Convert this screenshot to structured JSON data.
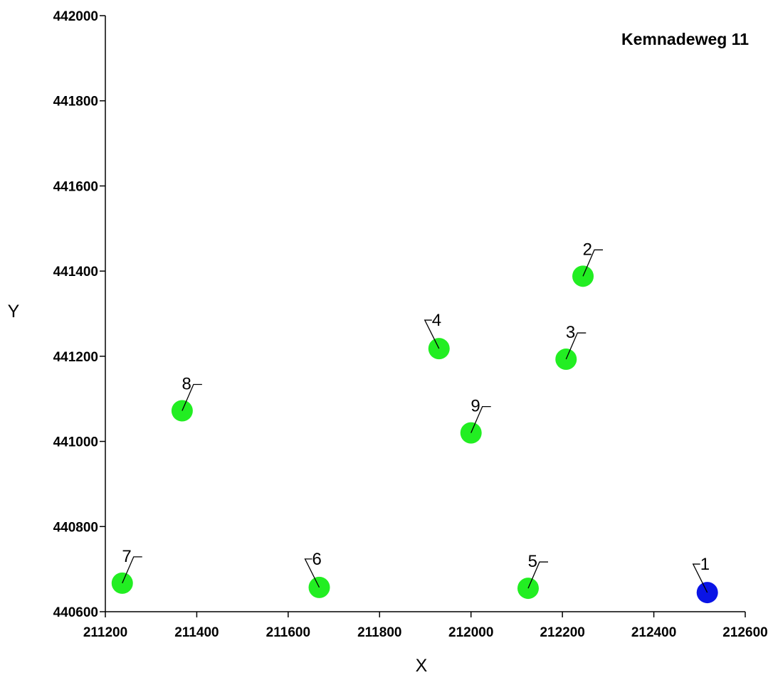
{
  "chart_data": {
    "type": "scatter",
    "title": "Kemnadeweg 11",
    "xlabel": "X",
    "ylabel": "Y",
    "xlim": [
      211200,
      212600
    ],
    "ylim": [
      440600,
      442000
    ],
    "xticks": [
      211200,
      211400,
      211600,
      211800,
      212000,
      212200,
      212400,
      212600
    ],
    "yticks": [
      440600,
      440800,
      441000,
      441200,
      441400,
      441600,
      441800,
      442000
    ],
    "grid": false,
    "colors": {
      "highlight": "#0a14e6",
      "default": "#22ee22"
    },
    "points": [
      {
        "label": "1",
        "x": 212517,
        "y": 440645,
        "color": "highlight",
        "leader": "left"
      },
      {
        "label": "2",
        "x": 212245,
        "y": 441388,
        "color": "default",
        "leader": "right"
      },
      {
        "label": "3",
        "x": 212208,
        "y": 441193,
        "color": "default",
        "leader": "right"
      },
      {
        "label": "4",
        "x": 211930,
        "y": 441218,
        "color": "default",
        "leader": "left"
      },
      {
        "label": "5",
        "x": 212125,
        "y": 440655,
        "color": "default",
        "leader": "right"
      },
      {
        "label": "6",
        "x": 211668,
        "y": 440657,
        "color": "default",
        "leader": "left"
      },
      {
        "label": "7",
        "x": 211237,
        "y": 440667,
        "color": "default",
        "leader": "right"
      },
      {
        "label": "8",
        "x": 211368,
        "y": 441072,
        "color": "default",
        "leader": "right"
      },
      {
        "label": "9",
        "x": 212000,
        "y": 441020,
        "color": "default",
        "leader": "right"
      }
    ]
  }
}
